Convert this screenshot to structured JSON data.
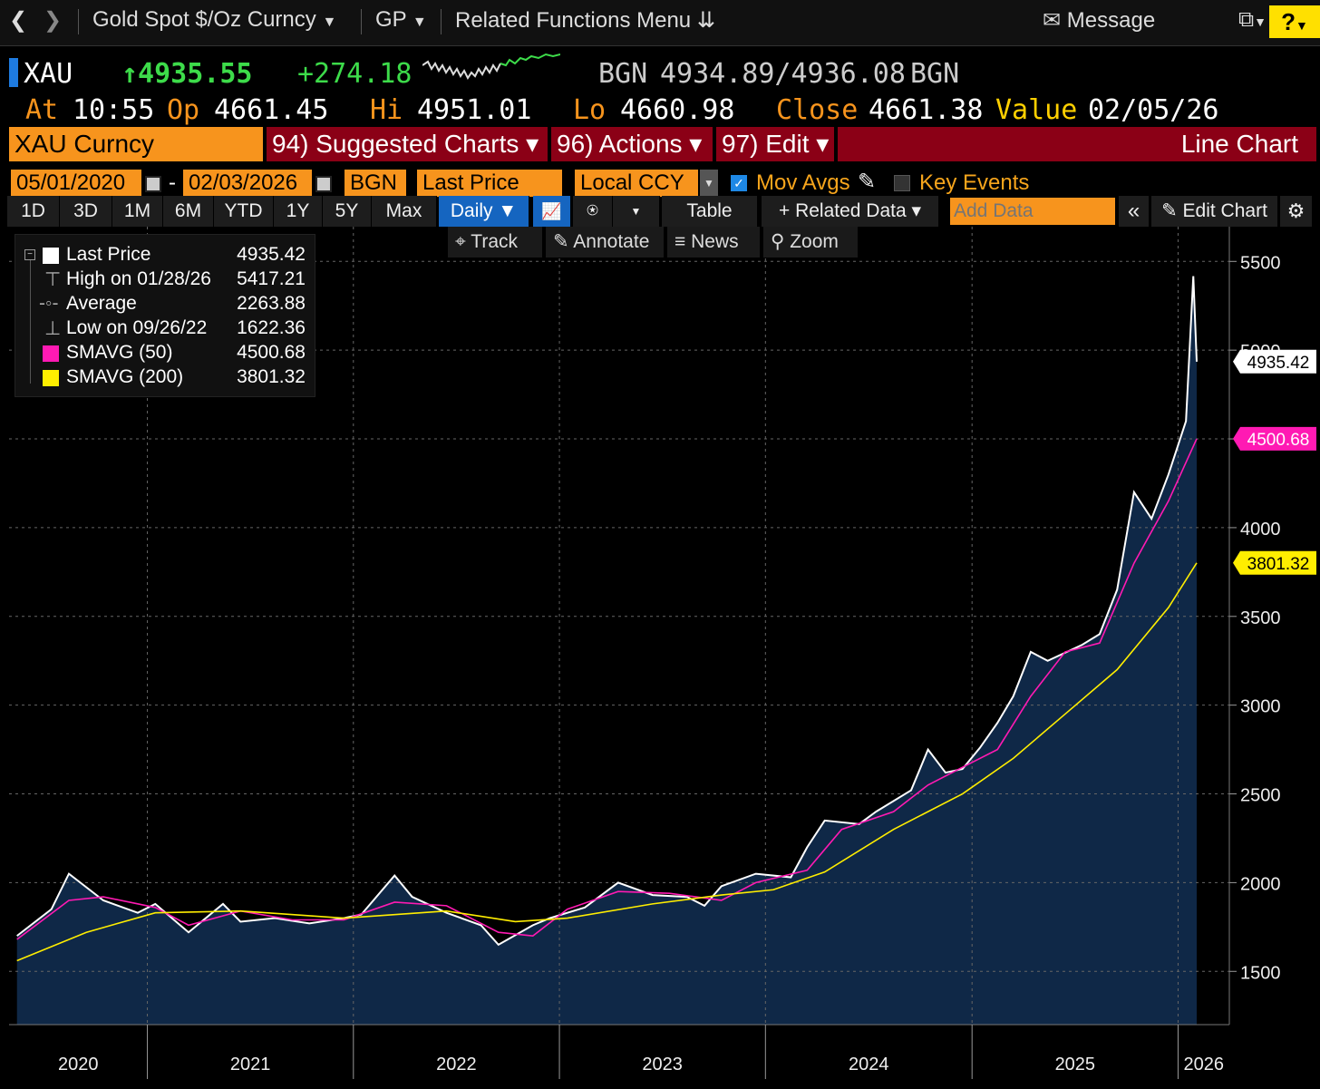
{
  "topbar": {
    "back_icon": "chevron-left-icon",
    "forward_icon": "chevron-right-icon",
    "security_name": "Gold Spot $/Oz Curncy",
    "gp_label": "GP",
    "related_functions": "Related Functions Menu",
    "message_label": "Message",
    "help_label": "?"
  },
  "quote": {
    "ticker": "XAU",
    "last": "↑4935.55",
    "change": "+274.18",
    "bid_source": "BGN",
    "bid_ask": "4934.89/4936.08",
    "ask_source": "BGN",
    "at_label": "At",
    "time": "10:55",
    "op_label": "Op",
    "open": "4661.45",
    "hi_label": "Hi",
    "high": "4951.01",
    "lo_label": "Lo",
    "low": "4660.98",
    "close_label": "Close",
    "close": "4661.38",
    "value_label": "Value",
    "value_date": "02/05/26"
  },
  "header": {
    "security": "XAU Curncy",
    "suggested_charts": "94) Suggested Charts ▾",
    "actions": "96) Actions ▾",
    "edit": "97) Edit ▾",
    "chart_type": "Line Chart"
  },
  "inputs": {
    "start_date": "05/01/2020",
    "dash": "-",
    "end_date": "02/03/2026",
    "source": "BGN",
    "field": "Last Price",
    "currency": "Local CCY",
    "mov_avgs_label": "Mov Avgs",
    "mov_avgs_checked": true,
    "key_events_label": "Key Events",
    "key_events_checked": false
  },
  "toolbar": {
    "periods": [
      "1D",
      "3D",
      "1M",
      "6M",
      "YTD",
      "1Y",
      "5Y",
      "Max"
    ],
    "frequency": "Daily ▼",
    "table_label": "Table",
    "related_data": "+ Related Data ▾",
    "add_data_placeholder": "Add Data",
    "collapse_label": "«",
    "edit_chart": "Edit Chart"
  },
  "subtools": {
    "track": "Track",
    "annotate": "Annotate",
    "news": "News",
    "zoom": "Zoom"
  },
  "legend": {
    "rows": [
      {
        "label": "Last Price",
        "value": "4935.42"
      },
      {
        "label": "High on 01/28/26",
        "value": "5417.21"
      },
      {
        "label": "Average",
        "value": "2263.88"
      },
      {
        "label": "Low on 09/26/22",
        "value": "1622.36"
      },
      {
        "label": "SMAVG (50)",
        "value": "4500.68"
      },
      {
        "label": "SMAVG (200)",
        "value": "3801.32"
      }
    ]
  },
  "colors": {
    "orange": "#f7941d",
    "red_bar": "#8b0016",
    "green": "#3ddc4a",
    "price_line": "#ffffff",
    "area_fill": "#0f2847",
    "sma50": "#ff1ab3",
    "sma200": "#ffee00",
    "accent_blue": "#1565c0"
  },
  "chart_data": {
    "type": "line",
    "ylim": [
      1200,
      5900
    ],
    "y_ticks": [
      1500,
      2000,
      2500,
      3000,
      3500,
      4000,
      4500,
      5000,
      5500
    ],
    "x_ticks": [
      "2020",
      "2021",
      "2022",
      "2023",
      "2024",
      "2025",
      "2026"
    ],
    "x_range": [
      "2020-05-01",
      "2026-02-03"
    ],
    "grid": true,
    "legend_position": "top-left",
    "last_price_tag": "4935.42",
    "sma50_tag": "4500.68",
    "sma200_tag": "3801.32",
    "series": [
      {
        "name": "Last Price",
        "x": [
          "2020-05",
          "2020-07",
          "2020-08",
          "2020-10",
          "2020-12",
          "2021-01",
          "2021-03",
          "2021-05",
          "2021-06",
          "2021-08",
          "2021-10",
          "2021-12",
          "2022-01",
          "2022-03",
          "2022-04",
          "2022-06",
          "2022-08",
          "2022-09",
          "2022-11",
          "2022-12",
          "2023-02",
          "2023-04",
          "2023-06",
          "2023-08",
          "2023-09",
          "2023-10",
          "2023-12",
          "2024-02",
          "2024-03",
          "2024-04",
          "2024-06",
          "2024-07",
          "2024-09",
          "2024-10",
          "2024-11",
          "2024-12",
          "2025-01",
          "2025-02",
          "2025-03",
          "2025-04",
          "2025-05",
          "2025-07",
          "2025-08",
          "2025-09",
          "2025-10",
          "2025-11",
          "2025-12",
          "2026-01",
          "2026-01-28",
          "2026-02-03"
        ],
        "y": [
          1700,
          1850,
          2050,
          1900,
          1830,
          1880,
          1720,
          1880,
          1780,
          1800,
          1770,
          1800,
          1820,
          2040,
          1920,
          1830,
          1760,
          1650,
          1760,
          1800,
          1860,
          2000,
          1930,
          1920,
          1870,
          1980,
          2050,
          2030,
          2200,
          2350,
          2330,
          2400,
          2520,
          2750,
          2620,
          2640,
          2760,
          2900,
          3050,
          3300,
          3250,
          3340,
          3400,
          3650,
          4200,
          4050,
          4300,
          4600,
          5417,
          4935
        ]
      },
      {
        "name": "SMAVG (50)",
        "x": [
          "2020-05",
          "2020-08",
          "2020-10",
          "2021-01",
          "2021-03",
          "2021-06",
          "2021-09",
          "2021-12",
          "2022-03",
          "2022-06",
          "2022-09",
          "2022-11",
          "2023-01",
          "2023-04",
          "2023-07",
          "2023-10",
          "2023-12",
          "2024-03",
          "2024-05",
          "2024-08",
          "2024-10",
          "2024-12",
          "2025-02",
          "2025-04",
          "2025-06",
          "2025-08",
          "2025-10",
          "2025-12",
          "2026-02-03"
        ],
        "y": [
          1680,
          1900,
          1920,
          1860,
          1760,
          1840,
          1790,
          1790,
          1890,
          1870,
          1720,
          1700,
          1850,
          1950,
          1940,
          1900,
          2000,
          2070,
          2300,
          2400,
          2550,
          2650,
          2750,
          3050,
          3300,
          3350,
          3800,
          4150,
          4500.68
        ]
      },
      {
        "name": "SMAVG (200)",
        "x": [
          "2020-05",
          "2020-09",
          "2021-01",
          "2021-06",
          "2021-12",
          "2022-06",
          "2022-10",
          "2023-01",
          "2023-06",
          "2023-10",
          "2024-01",
          "2024-04",
          "2024-08",
          "2024-12",
          "2025-03",
          "2025-06",
          "2025-09",
          "2025-12",
          "2026-02-03"
        ],
        "y": [
          1560,
          1720,
          1830,
          1840,
          1800,
          1840,
          1780,
          1800,
          1880,
          1930,
          1960,
          2060,
          2300,
          2500,
          2700,
          2950,
          3200,
          3550,
          3801.32
        ]
      }
    ]
  }
}
